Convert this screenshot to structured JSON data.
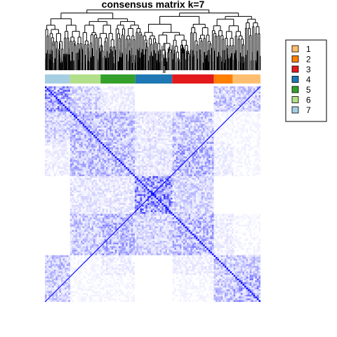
{
  "chart_data": {
    "type": "heatmap",
    "title": "consensus matrix k=7",
    "legend_position": "right",
    "heatmap_color_low": "#FFFFFF",
    "heatmap_color_high": "#0000FF",
    "classes": [
      {
        "label": "1",
        "color": "#FDBF6F"
      },
      {
        "label": "2",
        "color": "#FF7F00"
      },
      {
        "label": "3",
        "color": "#E31A1C"
      },
      {
        "label": "4",
        "color": "#1F78B4"
      },
      {
        "label": "5",
        "color": "#33A02C"
      },
      {
        "label": "6",
        "color": "#B2DF8A"
      },
      {
        "label": "7",
        "color": "#A6CEE3"
      }
    ],
    "column_annotation_order": [
      "7",
      "6",
      "5",
      "4",
      "3",
      "2",
      "1"
    ],
    "group_sizes": {
      "7": 36,
      "6": 44,
      "5": 50,
      "4": 53,
      "3": 60,
      "2": 27,
      "1": 40
    },
    "block_consensus": {
      "rows": [
        "7",
        "6",
        "5",
        "4",
        "3",
        "2",
        "1"
      ],
      "values": [
        [
          0.55,
          0.25,
          0.1,
          0.0,
          0.0,
          0.3,
          0.3
        ],
        [
          0.25,
          0.4,
          0.35,
          0.15,
          0.3,
          0.05,
          0.05
        ],
        [
          0.1,
          0.35,
          0.35,
          0.15,
          0.4,
          0.1,
          0.05
        ],
        [
          0.0,
          0.15,
          0.15,
          0.6,
          0.25,
          0.0,
          0.0
        ],
        [
          0.0,
          0.3,
          0.4,
          0.25,
          0.4,
          0.1,
          0.05
        ],
        [
          0.3,
          0.05,
          0.1,
          0.0,
          0.1,
          0.3,
          0.3
        ],
        [
          0.3,
          0.05,
          0.05,
          0.0,
          0.05,
          0.3,
          0.45
        ]
      ]
    }
  }
}
